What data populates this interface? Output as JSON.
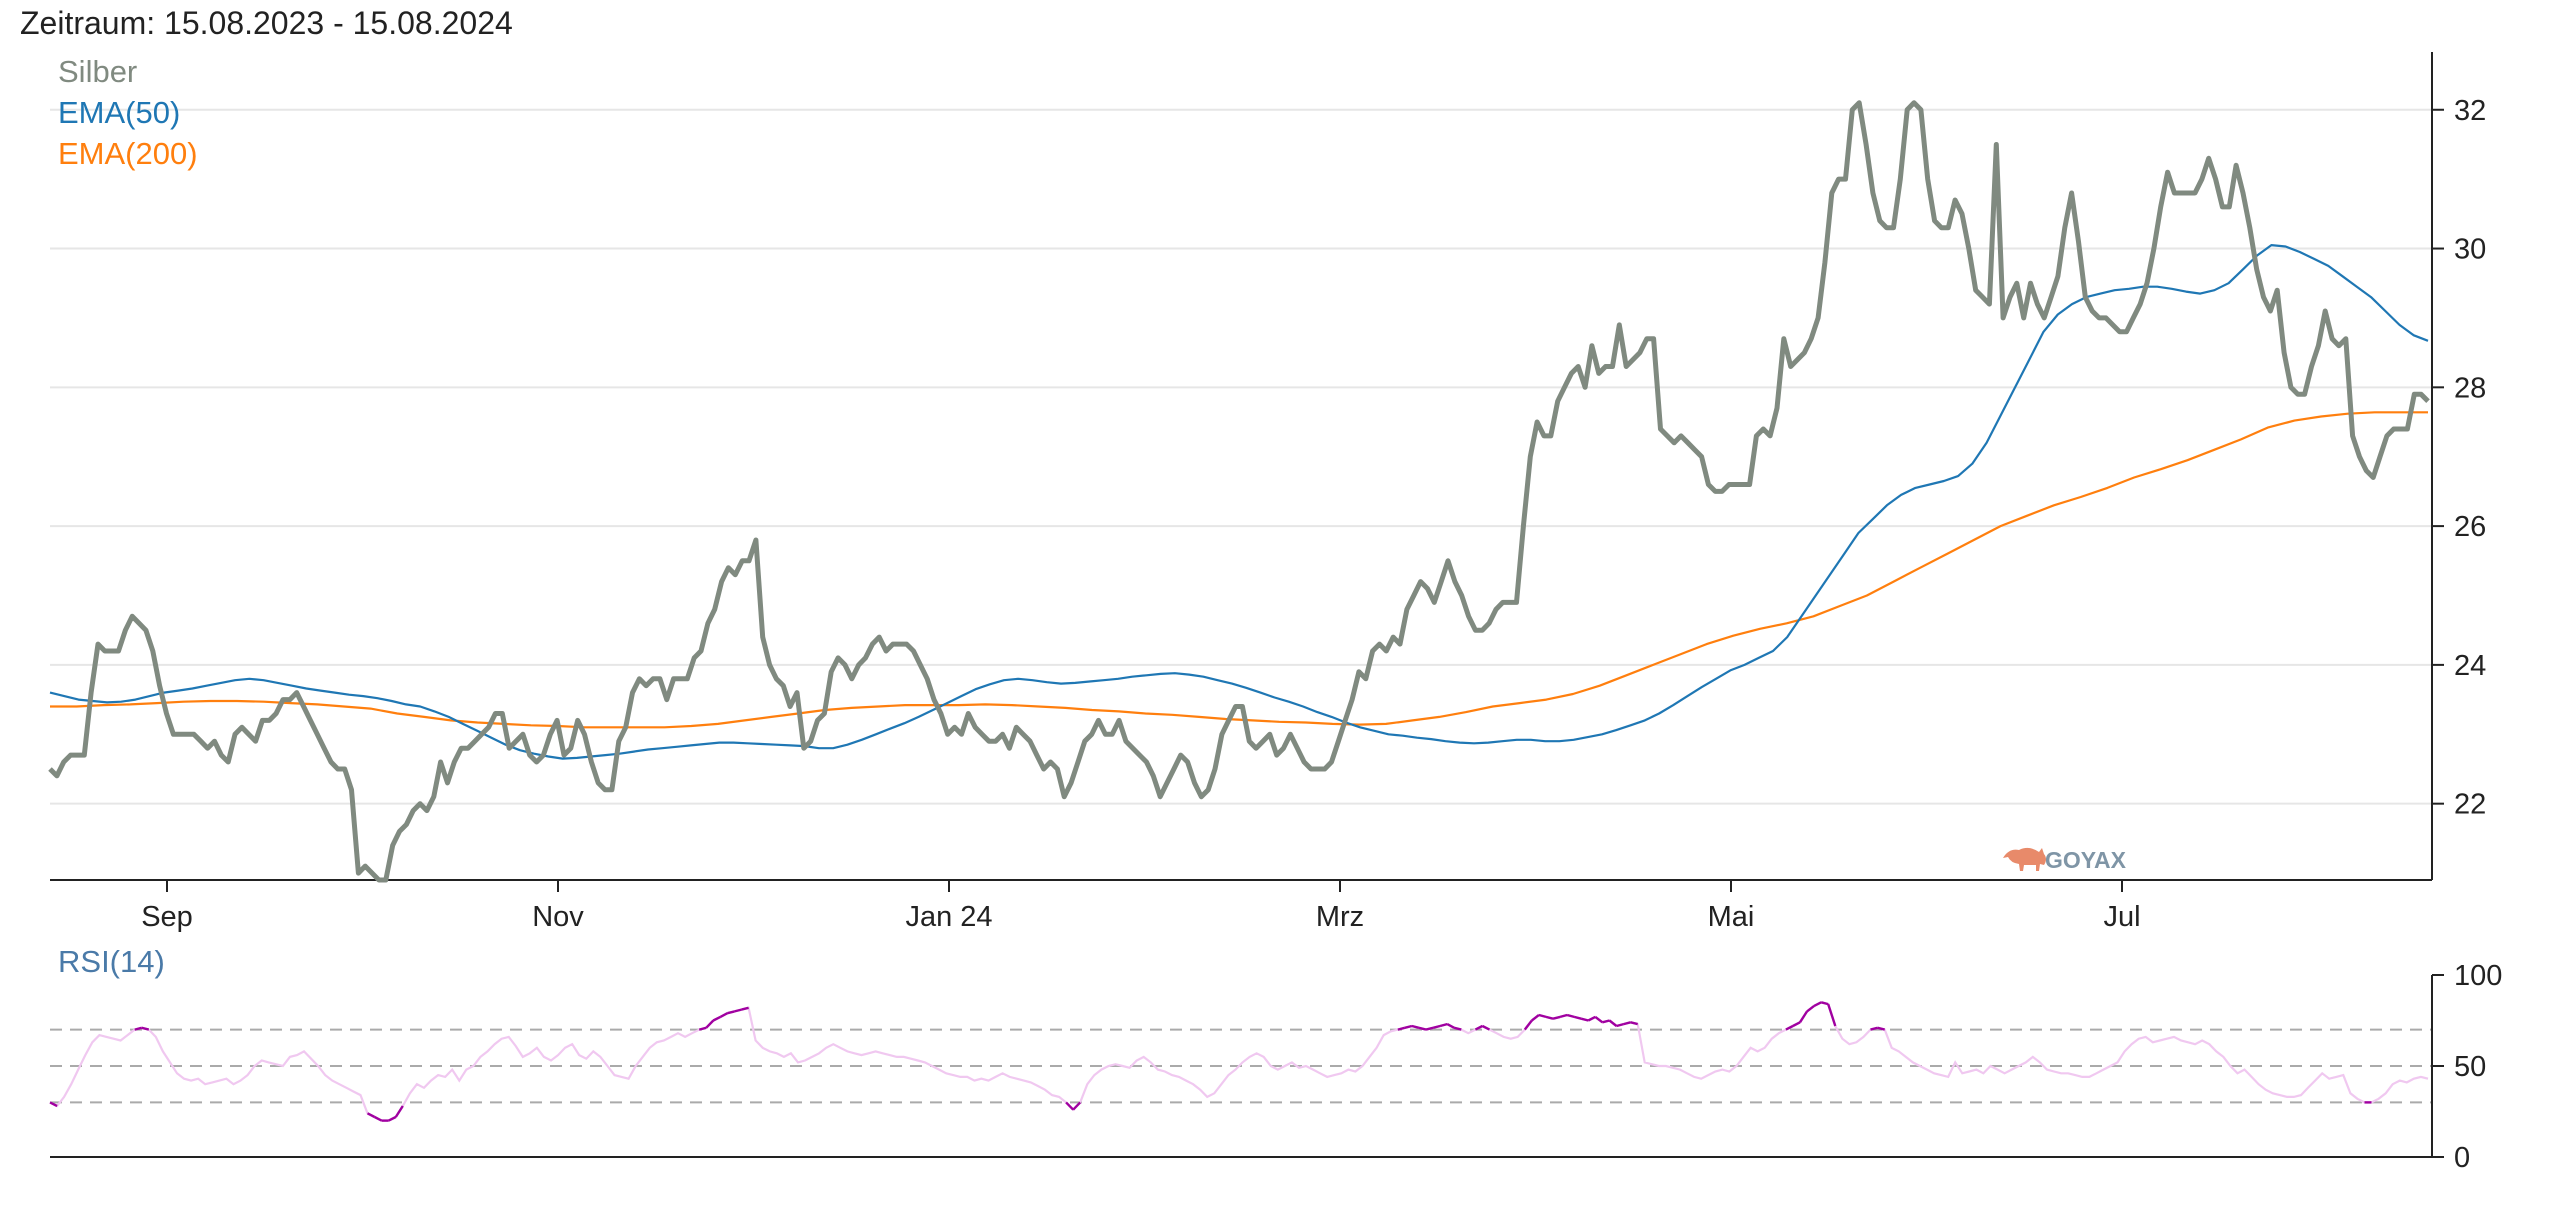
{
  "title": "Zeitraum: 15.08.2023 - 15.08.2024",
  "logo_text": "GOYAX",
  "colors": {
    "silber": "#808a80",
    "ema50": "#1f77b4",
    "ema200": "#ff7f0e",
    "rsi_main": "#f0c8f0",
    "rsi_extreme": "#a000a0",
    "rsi_label": "#4a7aa8",
    "grid": "#e6e6e6",
    "axis": "#222222",
    "refline": "#aaaaaa"
  },
  "chart_data": [
    {
      "type": "line",
      "x_label_ticks": [
        "Sep",
        "Nov",
        "Jan 24",
        "Mrz",
        "Mai",
        "Jul"
      ],
      "y_ticks": [
        22,
        24,
        26,
        28,
        30,
        32
      ],
      "ylim": [
        20.9,
        32.4
      ],
      "y_axis_side": "right",
      "grid": true,
      "legend_position": "top-left",
      "series": [
        {
          "name": "Silber",
          "values": [
            22.5,
            22.4,
            22.6,
            22.7,
            22.7,
            22.7,
            23.6,
            24.3,
            24.2,
            24.2,
            24.2,
            24.5,
            24.7,
            24.6,
            24.5,
            24.2,
            23.7,
            23.3,
            23.0,
            23.0,
            23.0,
            23.0,
            22.9,
            22.8,
            22.9,
            22.7,
            22.6,
            23.0,
            23.1,
            23.0,
            22.9,
            23.2,
            23.2,
            23.3,
            23.5,
            23.5,
            23.6,
            23.4,
            23.2,
            23.0,
            22.8,
            22.6,
            22.5,
            22.5,
            22.2,
            21.0,
            21.1,
            21.0,
            20.9,
            20.9,
            21.4,
            21.6,
            21.7,
            21.9,
            22.0,
            21.9,
            22.1,
            22.6,
            22.3,
            22.6,
            22.8,
            22.8,
            22.9,
            23.0,
            23.1,
            23.3,
            23.3,
            22.8,
            22.9,
            23.0,
            22.7,
            22.6,
            22.7,
            23.0,
            23.2,
            22.7,
            22.8,
            23.2,
            23.0,
            22.6,
            22.3,
            22.2,
            22.2,
            22.9,
            23.1,
            23.6,
            23.8,
            23.7,
            23.8,
            23.8,
            23.5,
            23.8,
            23.8,
            23.8,
            24.1,
            24.2,
            24.6,
            24.8,
            25.2,
            25.4,
            25.3,
            25.5,
            25.5,
            25.8,
            24.4,
            24.0,
            23.8,
            23.7,
            23.4,
            23.6,
            22.8,
            22.9,
            23.2,
            23.3,
            23.9,
            24.1,
            24.0,
            23.8,
            24.0,
            24.1,
            24.3,
            24.4,
            24.2,
            24.3,
            24.3,
            24.3,
            24.2,
            24.0,
            23.8,
            23.5,
            23.3,
            23.0,
            23.1,
            23.0,
            23.3,
            23.1,
            23.0,
            22.9,
            22.9,
            23.0,
            22.8,
            23.1,
            23.0,
            22.9,
            22.7,
            22.5,
            22.6,
            22.5,
            22.1,
            22.3,
            22.6,
            22.9,
            23.0,
            23.2,
            23.0,
            23.0,
            23.2,
            22.9,
            22.8,
            22.7,
            22.6,
            22.4,
            22.1,
            22.3,
            22.5,
            22.7,
            22.6,
            22.3,
            22.1,
            22.2,
            22.5,
            23.0,
            23.2,
            23.4,
            23.4,
            22.9,
            22.8,
            22.9,
            23.0,
            22.7,
            22.8,
            23.0,
            22.8,
            22.6,
            22.5,
            22.5,
            22.5,
            22.6,
            22.9,
            23.2,
            23.5,
            23.9,
            23.8,
            24.2,
            24.3,
            24.2,
            24.4,
            24.3,
            24.8,
            25.0,
            25.2,
            25.1,
            24.9,
            25.2,
            25.5,
            25.2,
            25.0,
            24.7,
            24.5,
            24.5,
            24.6,
            24.8,
            24.9,
            24.9,
            24.9,
            26.0,
            27.0,
            27.5,
            27.3,
            27.3,
            27.8,
            28.0,
            28.2,
            28.3,
            28.0,
            28.6,
            28.2,
            28.3,
            28.3,
            28.9,
            28.3,
            28.4,
            28.5,
            28.7,
            28.7,
            27.4,
            27.3,
            27.2,
            27.3,
            27.2,
            27.1,
            27.0,
            26.6,
            26.5,
            26.5,
            26.6,
            26.6,
            26.6,
            26.6,
            27.3,
            27.4,
            27.3,
            27.7,
            28.7,
            28.3,
            28.4,
            28.5,
            28.7,
            29.0,
            29.8,
            30.8,
            31.0,
            31.0,
            32.0,
            32.1,
            31.5,
            30.8,
            30.4,
            30.3,
            30.3,
            31.0,
            32.0,
            32.1,
            32.0,
            31.0,
            30.4,
            30.3,
            30.3,
            30.7,
            30.5,
            30.0,
            29.4,
            29.3,
            29.2,
            31.5,
            29.0,
            29.3,
            29.5,
            29.0,
            29.5,
            29.2,
            29.0,
            29.3,
            29.6,
            30.3,
            30.8,
            30.1,
            29.3,
            29.1,
            29.0,
            29.0,
            28.9,
            28.8,
            28.8,
            29.0,
            29.2,
            29.5,
            30.0,
            30.6,
            31.1,
            30.8,
            30.8,
            30.8,
            30.8,
            31.0,
            31.3,
            31.0,
            30.6,
            30.6,
            31.2,
            30.8,
            30.3,
            29.7,
            29.3,
            29.1,
            29.4,
            28.5,
            28.0,
            27.9,
            27.9,
            28.3,
            28.6,
            29.1,
            28.7,
            28.6,
            28.7,
            27.3,
            27.0,
            26.8,
            26.7,
            27.0,
            27.3,
            27.4,
            27.4,
            27.4,
            27.9,
            27.9,
            27.8
          ],
          "extremes": {
            "min": 20.9,
            "max": 32.1
          }
        },
        {
          "name": "EMA(50)",
          "values": [
            23.6,
            23.55,
            23.5,
            23.48,
            23.46,
            23.47,
            23.5,
            23.55,
            23.6,
            23.63,
            23.66,
            23.7,
            23.74,
            23.78,
            23.8,
            23.78,
            23.74,
            23.7,
            23.66,
            23.63,
            23.6,
            23.57,
            23.55,
            23.52,
            23.48,
            23.43,
            23.4,
            23.33,
            23.25,
            23.15,
            23.05,
            22.95,
            22.85,
            22.77,
            22.72,
            22.68,
            22.65,
            22.66,
            22.68,
            22.7,
            22.72,
            22.75,
            22.78,
            22.8,
            22.82,
            22.84,
            22.86,
            22.88,
            22.88,
            22.87,
            22.86,
            22.85,
            22.84,
            22.83,
            22.8,
            22.8,
            22.85,
            22.92,
            23.0,
            23.08,
            23.16,
            23.25,
            23.35,
            23.45,
            23.55,
            23.65,
            23.72,
            23.78,
            23.8,
            23.78,
            23.75,
            23.73,
            23.74,
            23.76,
            23.78,
            23.8,
            23.83,
            23.85,
            23.87,
            23.88,
            23.86,
            23.83,
            23.78,
            23.73,
            23.67,
            23.6,
            23.53,
            23.47,
            23.4,
            23.32,
            23.25,
            23.17,
            23.1,
            23.05,
            23.0,
            22.98,
            22.95,
            22.93,
            22.9,
            22.88,
            22.87,
            22.88,
            22.9,
            22.92,
            22.92,
            22.9,
            22.9,
            22.92,
            22.96,
            23.0,
            23.06,
            23.13,
            23.2,
            23.3,
            23.42,
            23.55,
            23.68,
            23.8,
            23.92,
            24.0,
            24.1,
            24.2,
            24.4,
            24.7,
            25.0,
            25.3,
            25.6,
            25.9,
            26.1,
            26.3,
            26.45,
            26.55,
            26.6,
            26.65,
            26.72,
            26.9,
            27.2,
            27.6,
            28.0,
            28.4,
            28.8,
            29.05,
            29.2,
            29.3,
            29.35,
            29.4,
            29.42,
            29.45,
            29.45,
            29.42,
            29.38,
            29.35,
            29.4,
            29.5,
            29.7,
            29.9,
            30.05,
            30.03,
            29.95,
            29.85,
            29.75,
            29.6,
            29.45,
            29.3,
            29.1,
            28.9,
            28.75,
            28.67
          ]
        },
        {
          "name": "EMA(200)",
          "values": [
            23.4,
            23.4,
            23.42,
            23.43,
            23.45,
            23.47,
            23.48,
            23.48,
            23.47,
            23.45,
            23.43,
            23.4,
            23.37,
            23.3,
            23.25,
            23.2,
            23.17,
            23.15,
            23.13,
            23.12,
            23.1,
            23.1,
            23.1,
            23.1,
            23.12,
            23.15,
            23.2,
            23.25,
            23.3,
            23.35,
            23.38,
            23.4,
            23.42,
            23.42,
            23.42,
            23.43,
            23.42,
            23.4,
            23.38,
            23.35,
            23.33,
            23.3,
            23.28,
            23.25,
            23.22,
            23.2,
            23.18,
            23.17,
            23.15,
            23.14,
            23.15,
            23.2,
            23.25,
            23.32,
            23.4,
            23.45,
            23.5,
            23.58,
            23.7,
            23.85,
            24.0,
            24.15,
            24.3,
            24.42,
            24.52,
            24.6,
            24.7,
            24.85,
            25.0,
            25.2,
            25.4,
            25.6,
            25.8,
            26.0,
            26.15,
            26.3,
            26.42,
            26.55,
            26.7,
            26.82,
            26.95,
            27.1,
            27.25,
            27.42,
            27.52,
            27.58,
            27.62,
            27.64,
            27.64,
            27.64
          ]
        }
      ]
    },
    {
      "type": "line",
      "y_ticks": [
        0,
        50,
        100
      ],
      "ylim": [
        0,
        100
      ],
      "y_axis_side": "right",
      "reference_lines": [
        30,
        50,
        70
      ],
      "series": [
        {
          "name": "RSI(14)",
          "values": [
            30,
            28,
            33,
            40,
            48,
            56,
            63,
            67,
            66,
            65,
            64,
            67,
            70,
            71,
            70,
            66,
            58,
            52,
            46,
            43,
            42,
            43,
            40,
            41,
            42,
            43,
            40,
            42,
            45,
            50,
            53,
            52,
            51,
            50,
            55,
            56,
            58,
            54,
            50,
            45,
            42,
            40,
            38,
            36,
            34,
            24,
            22,
            20,
            20,
            22,
            28,
            35,
            40,
            38,
            42,
            45,
            44,
            48,
            42,
            48,
            50,
            55,
            58,
            62,
            65,
            66,
            61,
            55,
            57,
            60,
            55,
            53,
            56,
            60,
            62,
            56,
            54,
            58,
            55,
            50,
            45,
            44,
            43,
            50,
            55,
            60,
            63,
            64,
            66,
            68,
            66,
            68,
            70,
            71,
            75,
            77,
            79,
            80,
            81,
            82,
            64,
            60,
            58,
            57,
            55,
            57,
            52,
            53,
            55,
            57,
            60,
            62,
            60,
            58,
            57,
            56,
            57,
            58,
            57,
            56,
            55,
            55,
            54,
            53,
            52,
            50,
            48,
            46,
            45,
            44,
            44,
            42,
            43,
            42,
            44,
            46,
            44,
            43,
            42,
            41,
            39,
            37,
            34,
            33,
            30,
            26,
            30,
            40,
            45,
            48,
            50,
            51,
            50,
            49,
            53,
            55,
            52,
            48,
            47,
            45,
            44,
            42,
            40,
            37,
            33,
            35,
            40,
            45,
            48,
            52,
            55,
            57,
            55,
            50,
            48,
            50,
            52,
            49,
            50,
            48,
            46,
            44,
            45,
            46,
            48,
            47,
            50,
            55,
            60,
            67,
            69,
            70,
            71,
            72,
            71,
            70,
            71,
            72,
            73,
            71,
            70,
            68,
            70,
            72,
            70,
            68,
            66,
            65,
            66,
            70,
            75,
            78,
            77,
            76,
            77,
            78,
            77,
            76,
            75,
            77,
            74,
            75,
            72,
            73,
            74,
            73,
            52,
            51,
            50,
            50,
            49,
            48,
            46,
            44,
            43,
            45,
            47,
            48,
            47,
            50,
            55,
            60,
            58,
            60,
            65,
            68,
            70,
            72,
            74,
            80,
            83,
            85,
            84,
            72,
            65,
            62,
            63,
            66,
            70,
            71,
            70,
            60,
            58,
            55,
            52,
            50,
            48,
            46,
            45,
            44,
            52,
            46,
            47,
            48,
            46,
            50,
            48,
            46,
            48,
            50,
            52,
            55,
            52,
            48,
            47,
            46,
            46,
            45,
            44,
            44,
            46,
            48,
            50,
            52,
            58,
            62,
            65,
            66,
            63,
            64,
            65,
            66,
            64,
            63,
            62,
            64,
            62,
            58,
            55,
            50,
            46,
            48,
            44,
            40,
            37,
            35,
            34,
            33,
            33,
            34,
            38,
            42,
            46,
            43,
            44,
            45,
            35,
            32,
            30,
            30,
            32,
            35,
            40,
            42,
            41,
            43,
            44,
            43
          ]
        }
      ]
    }
  ]
}
